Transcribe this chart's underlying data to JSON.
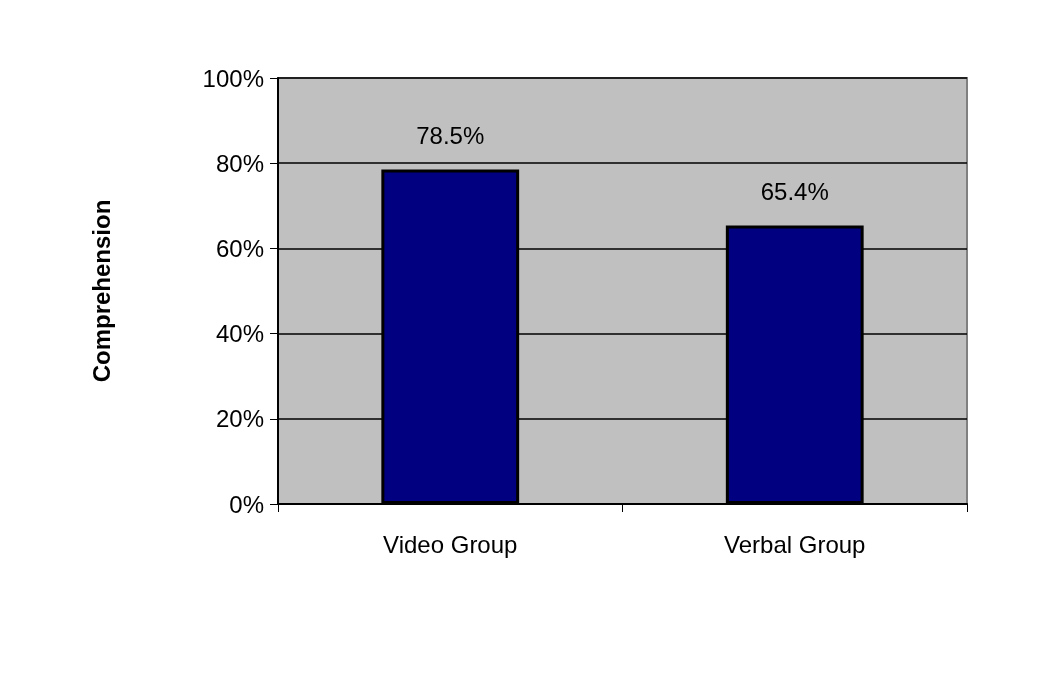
{
  "chart_data": {
    "type": "bar",
    "ylabel": "Comprehension",
    "categories": [
      "Video Group",
      "Verbal Group"
    ],
    "values": [
      78.5,
      65.4
    ],
    "color": "#000080",
    "value_labels": [
      "78.5%",
      "65.4%"
    ],
    "ylim": [
      0,
      100
    ],
    "yticks": [
      {
        "value": 0,
        "label": "0%"
      },
      {
        "value": 20,
        "label": "20%"
      },
      {
        "value": 40,
        "label": "40%"
      },
      {
        "value": 60,
        "label": "60%"
      },
      {
        "value": 80,
        "label": "80%"
      },
      {
        "value": 100,
        "label": "100%"
      }
    ],
    "grid": "y"
  }
}
